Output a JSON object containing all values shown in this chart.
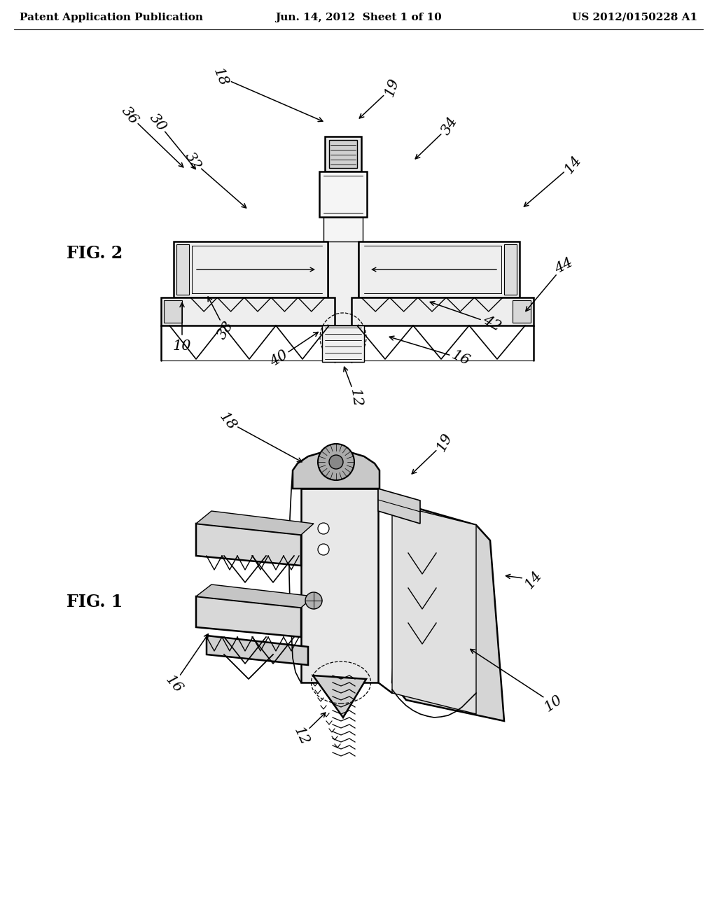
{
  "bg": "#ffffff",
  "header_left": "Patent Application Publication",
  "header_center": "Jun. 14, 2012  Sheet 1 of 10",
  "header_right": "US 2012/0150228 A1",
  "lw": 1.2,
  "hlw": 1.8,
  "fig1_label": "FIG. 1",
  "fig2_label": "FIG. 2",
  "ref_fs": 15,
  "label_fs": 17
}
